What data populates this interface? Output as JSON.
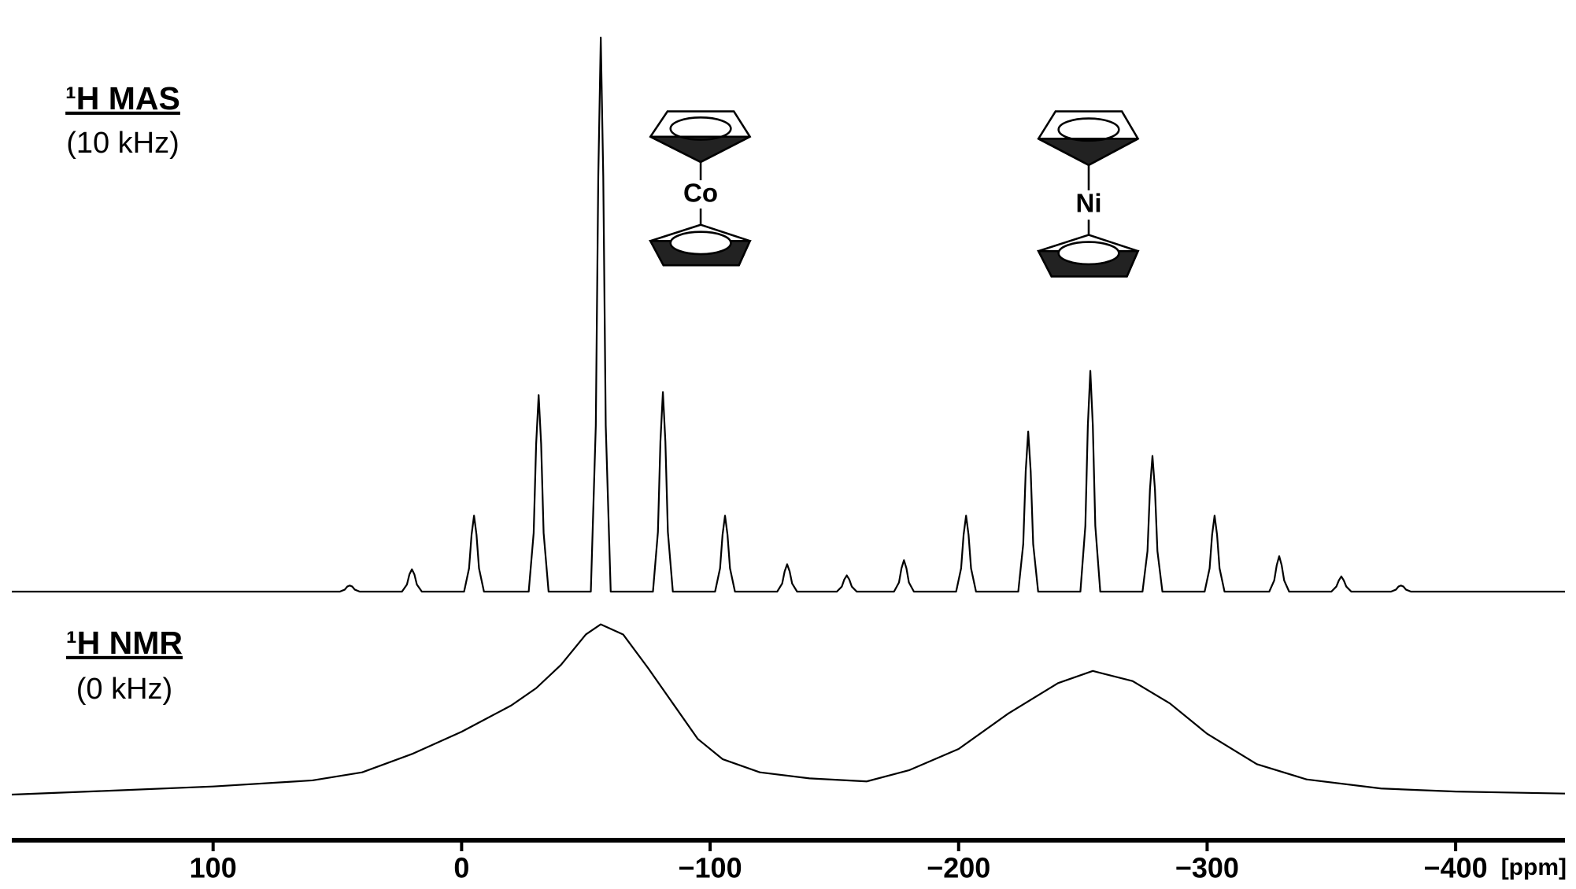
{
  "chart_data": [
    {
      "type": "line",
      "title": "¹H MAS",
      "subtitle": "(10 kHz)",
      "annotations": [
        "Co",
        "Ni"
      ],
      "xlim": [
        181,
        -444
      ],
      "ylim": [
        0,
        560
      ],
      "x": [
        181,
        49,
        47,
        46,
        45,
        44,
        43,
        41,
        24,
        22,
        21,
        20,
        19,
        18,
        16,
        -1,
        -3,
        -4,
        -5,
        -6,
        -7,
        -9,
        -27,
        -29,
        -30,
        -31,
        -32,
        -33,
        -35,
        -52,
        -54,
        -55,
        -56,
        -57,
        -58,
        -60,
        -77,
        -79,
        -80,
        -81,
        -82,
        -83,
        -85,
        -102,
        -104,
        -105,
        -106,
        -107,
        -108,
        -110,
        -127,
        -129,
        -130,
        -131,
        -132,
        -133,
        -135,
        -151,
        -153,
        -154,
        -155,
        -156,
        -157,
        -159,
        -174,
        -176,
        -177,
        -178,
        -179,
        -180,
        -182,
        -199,
        -201,
        -202,
        -203,
        -204,
        -205,
        -207,
        -224,
        -226,
        -227,
        -228,
        -229,
        -230,
        -232,
        -249,
        -251,
        -252,
        -253,
        -254,
        -255,
        -257,
        -274,
        -276,
        -277,
        -278,
        -279,
        -280,
        -282,
        -299,
        -301,
        -302,
        -303,
        -304,
        -305,
        -307,
        -325,
        -327,
        -328,
        -329,
        -330,
        -331,
        -333,
        -350,
        -352,
        -353,
        -354,
        -355,
        -356,
        -358,
        -374,
        -376,
        -377,
        -378,
        -379,
        -380,
        -382,
        -444
      ],
      "series": [
        {
          "color": "#000000",
          "values": [
            0,
            0,
            2,
            5,
            6,
            5,
            2,
            0,
            0,
            7,
            17,
            22,
            17,
            7,
            0,
            0,
            23,
            56,
            75,
            56,
            23,
            0,
            0,
            58,
            146,
            194,
            146,
            58,
            0,
            0,
            164,
            410,
            547,
            410,
            164,
            0,
            0,
            59,
            148,
            197,
            148,
            59,
            0,
            0,
            23,
            56,
            75,
            56,
            23,
            0,
            0,
            8,
            20,
            27,
            20,
            8,
            0,
            0,
            5,
            12,
            16,
            12,
            5,
            0,
            0,
            9,
            23,
            31,
            23,
            9,
            0,
            0,
            23,
            56,
            75,
            56,
            23,
            0,
            0,
            47,
            119,
            158,
            119,
            47,
            0,
            0,
            65,
            164,
            218,
            164,
            65,
            0,
            0,
            40,
            101,
            134,
            101,
            40,
            0,
            0,
            23,
            56,
            75,
            56,
            23,
            0,
            0,
            11,
            26,
            35,
            26,
            11,
            0,
            0,
            5,
            11,
            15,
            11,
            5,
            0,
            0,
            2,
            5,
            6,
            5,
            2,
            0,
            0
          ]
        }
      ]
    },
    {
      "type": "line",
      "title": "¹H NMR",
      "subtitle": "(0 kHz)",
      "xlabel": "[ppm]",
      "xlim": [
        181,
        -444
      ],
      "ylim": [
        0,
        170
      ],
      "xticks": [
        100,
        0,
        {
          "value": -100,
          "label": "−100"
        },
        {
          "value": -200,
          "label": "−200"
        },
        {
          "value": -300,
          "label": "−300"
        },
        {
          "value": -400,
          "label": "−400"
        }
      ],
      "x": [
        181,
        140,
        100,
        60,
        40,
        20,
        0,
        -10,
        -20,
        -30,
        -40,
        -50,
        -56,
        -65,
        -75,
        -85,
        -95,
        -105,
        -120,
        -140,
        -163,
        -180,
        -200,
        -220,
        -240,
        -254,
        -270,
        -285,
        -300,
        -320,
        -340,
        -370,
        -400,
        -444
      ],
      "series": [
        {
          "color": "#000000",
          "values": [
            0,
            4,
            8,
            14,
            22,
            40,
            62,
            75,
            88,
            105,
            128,
            158,
            168,
            158,
            125,
            90,
            55,
            35,
            22,
            16,
            13,
            24,
            45,
            80,
            110,
            122,
            112,
            90,
            60,
            30,
            15,
            6,
            3,
            1
          ]
        }
      ]
    }
  ]
}
